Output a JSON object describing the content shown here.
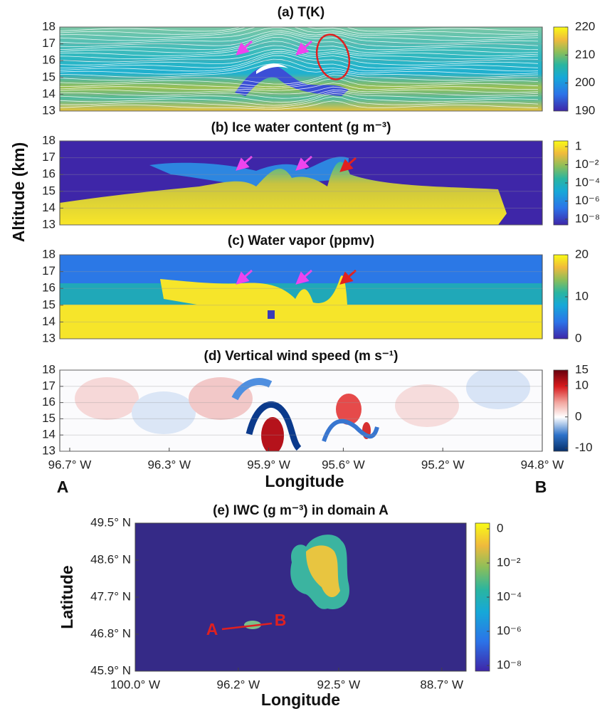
{
  "figure": {
    "ylabel": "Altitude (km)",
    "xlabel": "Longitude",
    "end_labels": [
      "A",
      "B"
    ]
  },
  "chart_data": [
    {
      "type": "heatmap",
      "title": "(a) T(K)",
      "ylim": [
        13,
        18
      ],
      "yticks": [
        13,
        14,
        15,
        16,
        17,
        18
      ],
      "xlim": [
        -96.74,
        -94.8
      ],
      "colorbar": {
        "lim": [
          190,
          220
        ],
        "ticks": [
          190,
          200,
          210,
          220
        ]
      }
    },
    {
      "type": "heatmap",
      "title": "(b) Ice water content (g m⁻³)",
      "ylim": [
        13,
        18
      ],
      "yticks": [
        13,
        14,
        15,
        16,
        17,
        18
      ],
      "xlim": [
        -96.74,
        -94.8
      ],
      "colorbar": {
        "log": true,
        "labels": [
          "1",
          "10⁻²",
          "10⁻⁴",
          "10⁻⁶",
          "10⁻⁸"
        ]
      }
    },
    {
      "type": "heatmap",
      "title": "(c) Water vapor (ppmv)",
      "ylim": [
        13,
        18
      ],
      "yticks": [
        13,
        14,
        15,
        16,
        17,
        18
      ],
      "xlim": [
        -96.74,
        -94.8
      ],
      "colorbar": {
        "lim": [
          0,
          20
        ],
        "ticks": [
          0,
          10,
          20
        ]
      }
    },
    {
      "type": "heatmap",
      "title": "(d) Vertical wind speed (m s⁻¹)",
      "ylim": [
        13,
        18
      ],
      "yticks": [
        13,
        14,
        15,
        16,
        17,
        18
      ],
      "xlim": [
        -96.74,
        -94.8
      ],
      "xticks": [
        {
          "value": -96.7,
          "label": "96.7° W"
        },
        {
          "value": -96.3,
          "label": "96.3° W"
        },
        {
          "value": -95.9,
          "label": "95.9° W"
        },
        {
          "value": -95.6,
          "label": "95.6° W"
        },
        {
          "value": -95.2,
          "label": "95.2° W"
        },
        {
          "value": -94.8,
          "label": "94.8° W"
        }
      ],
      "colorbar": {
        "lim": [
          -11,
          15
        ],
        "ticks": [
          -10,
          0,
          10,
          15
        ]
      }
    },
    {
      "type": "map",
      "title": "(e) IWC (g m⁻³) in domain A",
      "xlabel": "Longitude",
      "ylabel": "Latitude",
      "xlim": [
        -100,
        -87.8
      ],
      "ylim": [
        45.9,
        49.5
      ],
      "xticks": [
        {
          "value": -100,
          "label": "100.0° W"
        },
        {
          "value": -96.2,
          "label": "96.2° W"
        },
        {
          "value": -92.5,
          "label": "92.5° W"
        },
        {
          "value": -88.7,
          "label": "88.7° W"
        }
      ],
      "yticks": [
        {
          "value": 45.9,
          "label": "45.9° N"
        },
        {
          "value": 46.8,
          "label": "46.8° N"
        },
        {
          "value": 47.7,
          "label": "47.7° N"
        },
        {
          "value": 48.6,
          "label": "48.6° N"
        },
        {
          "value": 49.5,
          "label": "49.5° N"
        }
      ],
      "annotations": [
        "A",
        "B"
      ],
      "colorbar": {
        "log": true,
        "labels": [
          "0",
          "10⁻²",
          "10⁻⁴",
          "10⁻⁶",
          "10⁻⁸"
        ]
      }
    }
  ]
}
